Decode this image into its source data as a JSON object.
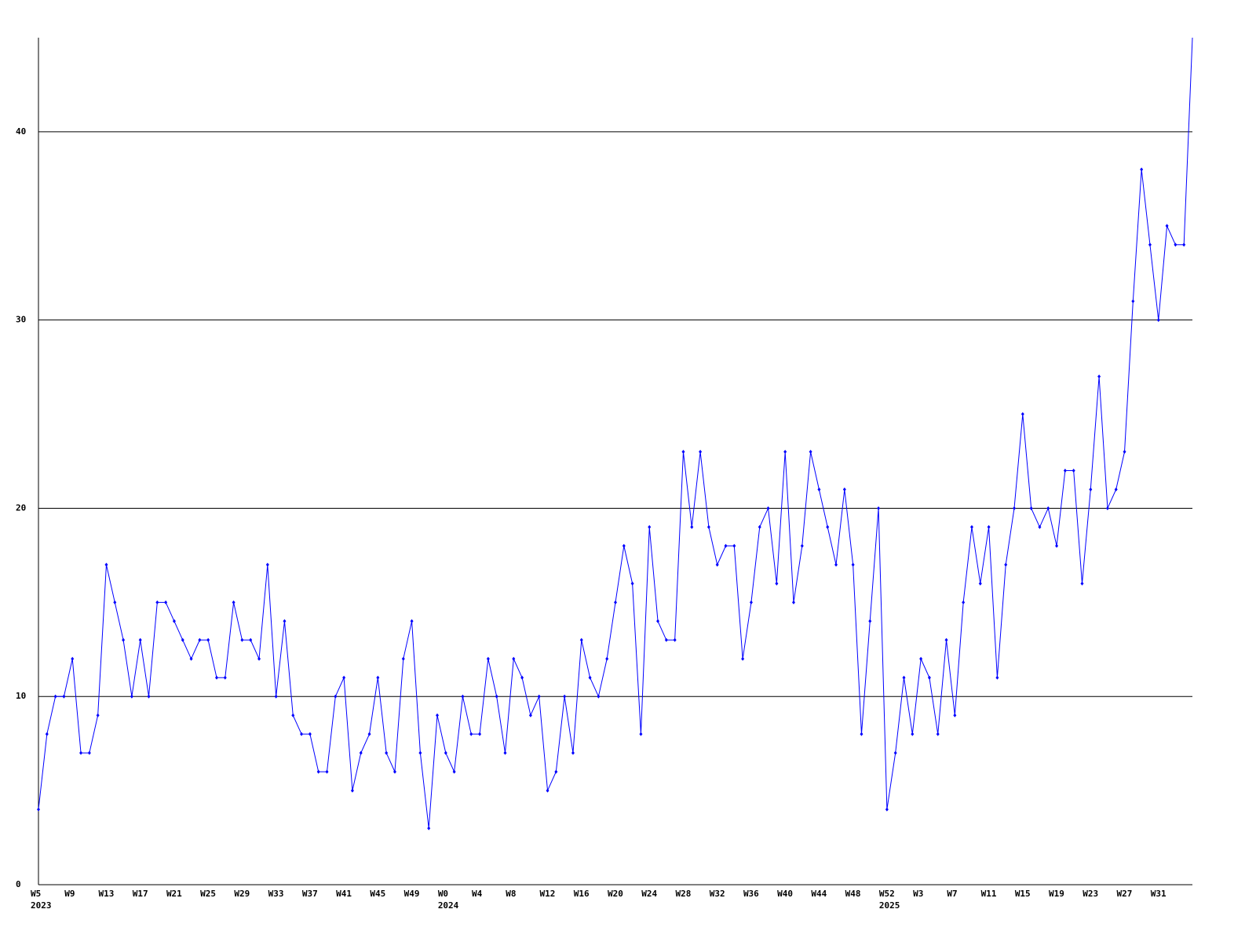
{
  "chart_data": {
    "type": "line",
    "color": "#0000ff",
    "grid": true,
    "ylim": [
      0,
      45
    ],
    "yticks": [
      0,
      10,
      20,
      30,
      40
    ],
    "categories": [
      "W5",
      null,
      null,
      null,
      "W9",
      null,
      null,
      null,
      "W13",
      null,
      null,
      null,
      "W17",
      null,
      null,
      null,
      "W21",
      null,
      null,
      null,
      "W25",
      null,
      null,
      null,
      "W29",
      null,
      null,
      null,
      "W33",
      null,
      null,
      null,
      "W37",
      null,
      null,
      null,
      "W41",
      null,
      null,
      null,
      "W45",
      null,
      null,
      null,
      "W49",
      null,
      null,
      null,
      "W0",
      null,
      null,
      null,
      "W4",
      null,
      null,
      null,
      "W8",
      null,
      null,
      null,
      "W12",
      null,
      null,
      null,
      "W16",
      null,
      null,
      null,
      "W20",
      null,
      null,
      null,
      "W24",
      null,
      null,
      null,
      "W28",
      null,
      null,
      null,
      "W32",
      null,
      null,
      null,
      "W36",
      null,
      null,
      null,
      "W40",
      null,
      null,
      null,
      "W44",
      null,
      null,
      null,
      "W48",
      null,
      null,
      null,
      "W52",
      null,
      null,
      null,
      "W3",
      null,
      null,
      null,
      "W7",
      null,
      null,
      null,
      "W11",
      null,
      null,
      null,
      "W15",
      null,
      null,
      null,
      "W19",
      null,
      null,
      null,
      "W23",
      null,
      null,
      null,
      "W27",
      null,
      null,
      null,
      "W31",
      null,
      null,
      null,
      null
    ],
    "years": [
      {
        "label": "2023",
        "at": 0
      },
      {
        "label": "2024",
        "at": 48
      },
      {
        "label": "2025",
        "at": 100
      }
    ],
    "values": [
      4,
      8,
      10,
      10,
      12,
      7,
      7,
      9,
      17,
      15,
      13,
      10,
      13,
      10,
      15,
      15,
      14,
      13,
      12,
      13,
      13,
      11,
      11,
      15,
      13,
      13,
      12,
      17,
      10,
      14,
      9,
      8,
      8,
      6,
      6,
      10,
      11,
      5,
      7,
      8,
      11,
      7,
      6,
      12,
      14,
      7,
      3,
      9,
      7,
      6,
      10,
      8,
      8,
      12,
      10,
      7,
      12,
      11,
      9,
      10,
      5,
      6,
      10,
      7,
      13,
      11,
      10,
      12,
      15,
      18,
      16,
      8,
      19,
      14,
      13,
      13,
      23,
      19,
      23,
      19,
      17,
      18,
      18,
      12,
      15,
      19,
      20,
      16,
      23,
      15,
      18,
      23,
      21,
      19,
      17,
      21,
      17,
      8,
      14,
      20,
      4,
      7,
      11,
      8,
      12,
      11,
      8,
      13,
      9,
      15,
      19,
      16,
      19,
      11,
      17,
      20,
      25,
      20,
      19,
      20,
      18,
      22,
      22,
      16,
      21,
      27,
      20,
      21,
      23,
      31,
      38,
      34,
      30,
      35,
      34,
      34,
      45
    ]
  }
}
